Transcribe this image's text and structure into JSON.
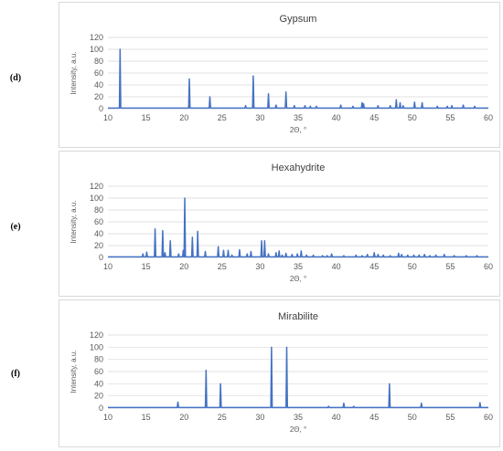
{
  "colors": {
    "series": "#4472c4",
    "grid": "#d9d9d9",
    "frame": "#d9d9d9",
    "text": "#595959"
  },
  "chart_data": [
    {
      "panel_letter": "(d)",
      "type": "line",
      "title": "Gypsum",
      "xlabel": "2Θ, °",
      "ylabel": "Intensity, a.u.",
      "xlim": [
        10,
        60
      ],
      "ylim": [
        0,
        120
      ],
      "x_ticks": [
        10,
        15,
        20,
        25,
        30,
        35,
        40,
        45,
        50,
        55,
        60
      ],
      "y_ticks": [
        0,
        20,
        40,
        60,
        80,
        100,
        120
      ],
      "grid": true,
      "legend": "none",
      "baseline": 1,
      "peaks": [
        [
          11.6,
          100
        ],
        [
          20.7,
          50
        ],
        [
          23.4,
          20
        ],
        [
          28.1,
          5
        ],
        [
          29.1,
          55
        ],
        [
          31.1,
          25
        ],
        [
          32.1,
          6
        ],
        [
          33.4,
          28
        ],
        [
          34.5,
          5
        ],
        [
          35.9,
          5
        ],
        [
          36.6,
          4
        ],
        [
          37.4,
          4
        ],
        [
          40.6,
          6
        ],
        [
          42.2,
          4
        ],
        [
          43.4,
          10
        ],
        [
          43.6,
          8
        ],
        [
          45.5,
          5
        ],
        [
          47.1,
          5
        ],
        [
          47.9,
          15
        ],
        [
          48.4,
          10
        ],
        [
          48.8,
          5
        ],
        [
          50.3,
          11
        ],
        [
          51.3,
          10
        ],
        [
          53.3,
          4
        ],
        [
          54.6,
          4
        ],
        [
          55.2,
          5
        ],
        [
          56.7,
          6
        ],
        [
          58.2,
          4
        ]
      ]
    },
    {
      "panel_letter": "(e)",
      "type": "line",
      "title": "Hexahydrite",
      "xlabel": "2Θ, °",
      "ylabel": "Intensity, a.u.",
      "xlim": [
        10,
        60
      ],
      "ylim": [
        0,
        120
      ],
      "x_ticks": [
        10,
        15,
        20,
        25,
        30,
        35,
        40,
        45,
        50,
        55,
        60
      ],
      "y_ticks": [
        0,
        20,
        40,
        60,
        80,
        100,
        120
      ],
      "grid": true,
      "legend": "none",
      "baseline": 1,
      "peaks": [
        [
          14.6,
          6
        ],
        [
          15.1,
          9
        ],
        [
          16.2,
          48
        ],
        [
          17.2,
          45
        ],
        [
          17.5,
          8
        ],
        [
          18.2,
          28
        ],
        [
          19.3,
          6
        ],
        [
          19.9,
          12
        ],
        [
          20.1,
          100
        ],
        [
          21.1,
          34
        ],
        [
          21.8,
          44
        ],
        [
          22.8,
          10
        ],
        [
          24.5,
          18
        ],
        [
          25.2,
          12
        ],
        [
          25.8,
          12
        ],
        [
          26.3,
          4
        ],
        [
          27.3,
          13
        ],
        [
          28.3,
          6
        ],
        [
          28.8,
          10
        ],
        [
          30.2,
          28
        ],
        [
          30.6,
          28
        ],
        [
          31.1,
          6
        ],
        [
          32.1,
          8
        ],
        [
          32.5,
          11
        ],
        [
          32.9,
          4
        ],
        [
          33.4,
          7
        ],
        [
          34.2,
          5
        ],
        [
          34.9,
          6
        ],
        [
          35.4,
          11
        ],
        [
          36.1,
          4
        ],
        [
          37.0,
          4
        ],
        [
          38.2,
          3
        ],
        [
          38.8,
          3
        ],
        [
          39.4,
          6
        ],
        [
          41.0,
          3
        ],
        [
          42.6,
          4
        ],
        [
          43.4,
          3
        ],
        [
          44.1,
          5
        ],
        [
          45.0,
          8
        ],
        [
          45.5,
          5
        ],
        [
          46.2,
          4
        ],
        [
          47.1,
          3
        ],
        [
          48.2,
          7
        ],
        [
          48.6,
          5
        ],
        [
          49.4,
          4
        ],
        [
          50.2,
          4
        ],
        [
          50.9,
          4
        ],
        [
          51.6,
          5
        ],
        [
          52.3,
          3
        ],
        [
          53.1,
          4
        ],
        [
          54.2,
          5
        ],
        [
          55.5,
          3
        ],
        [
          57.1,
          3
        ],
        [
          58.5,
          3
        ]
      ]
    },
    {
      "panel_letter": "(f)",
      "type": "line",
      "title": "Mirabilite",
      "xlabel": "2Θ, °",
      "ylabel": "Intensity, a.u.",
      "xlim": [
        10,
        60
      ],
      "ylim": [
        0,
        120
      ],
      "x_ticks": [
        10,
        15,
        20,
        25,
        30,
        35,
        40,
        45,
        50,
        55,
        60
      ],
      "y_ticks": [
        0,
        20,
        40,
        60,
        80,
        100,
        120
      ],
      "grid": true,
      "legend": "none",
      "baseline": 1,
      "peaks": [
        [
          19.2,
          10
        ],
        [
          22.9,
          62
        ],
        [
          24.8,
          40
        ],
        [
          31.5,
          100
        ],
        [
          33.5,
          100
        ],
        [
          39.0,
          3
        ],
        [
          41.0,
          8
        ],
        [
          42.3,
          3
        ],
        [
          47.0,
          40
        ],
        [
          51.2,
          8
        ],
        [
          58.9,
          9
        ]
      ]
    }
  ]
}
